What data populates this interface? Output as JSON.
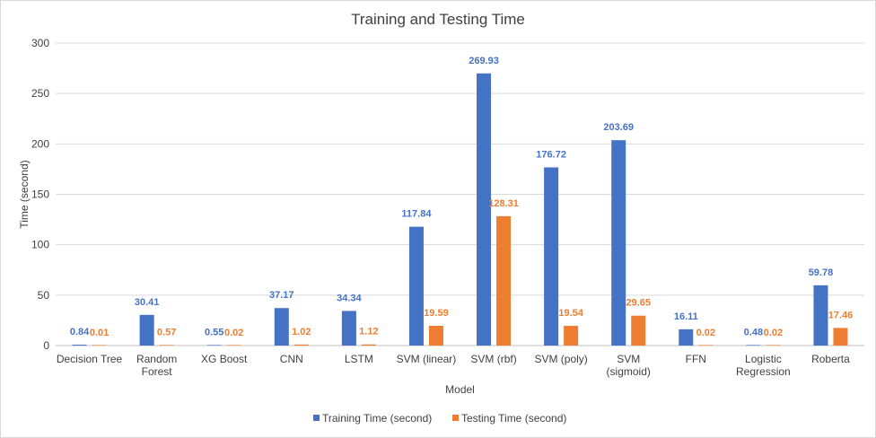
{
  "chart_data": {
    "type": "bar",
    "title": "Training and Testing Time",
    "xlabel": "Model",
    "ylabel": "Time (second)",
    "ylim": [
      0,
      300
    ],
    "yticks": [
      0,
      50,
      100,
      150,
      200,
      250,
      300
    ],
    "grid": true,
    "legend_position": "bottom",
    "categories": [
      [
        "Decision Tree"
      ],
      [
        "Random",
        "Forest"
      ],
      [
        "XG Boost"
      ],
      [
        "CNN"
      ],
      [
        "LSTM"
      ],
      [
        "SVM (linear)"
      ],
      [
        "SVM (rbf)"
      ],
      [
        "SVM (poly)"
      ],
      [
        "SVM",
        "(sigmoid)"
      ],
      [
        "FFN"
      ],
      [
        "Logistic",
        "Regression"
      ],
      [
        "Roberta"
      ]
    ],
    "series": [
      {
        "name": "Training Time (second)",
        "color": "#4472c4",
        "values": [
          0.84,
          30.41,
          0.55,
          37.17,
          34.34,
          117.84,
          269.93,
          176.72,
          203.69,
          16.11,
          0.48,
          59.78
        ],
        "labels": [
          "0.84",
          "30.41",
          "0.55",
          "37.17",
          "34.34",
          "117.84",
          "269.93",
          "176.72",
          "203.69",
          "16.11",
          "0.48",
          "59.78"
        ]
      },
      {
        "name": "Testing Time (second)",
        "color": "#ed7d31",
        "values": [
          0.01,
          0.57,
          0.02,
          1.02,
          1.12,
          19.59,
          128.31,
          19.54,
          29.65,
          0.02,
          0.02,
          17.46
        ],
        "labels": [
          "0.01",
          "0.57",
          "0.02",
          "1.02",
          "1.12",
          "19.59",
          "128.31",
          "19.54",
          "29.65",
          "0.02",
          "0.02",
          "17.46"
        ]
      }
    ]
  }
}
